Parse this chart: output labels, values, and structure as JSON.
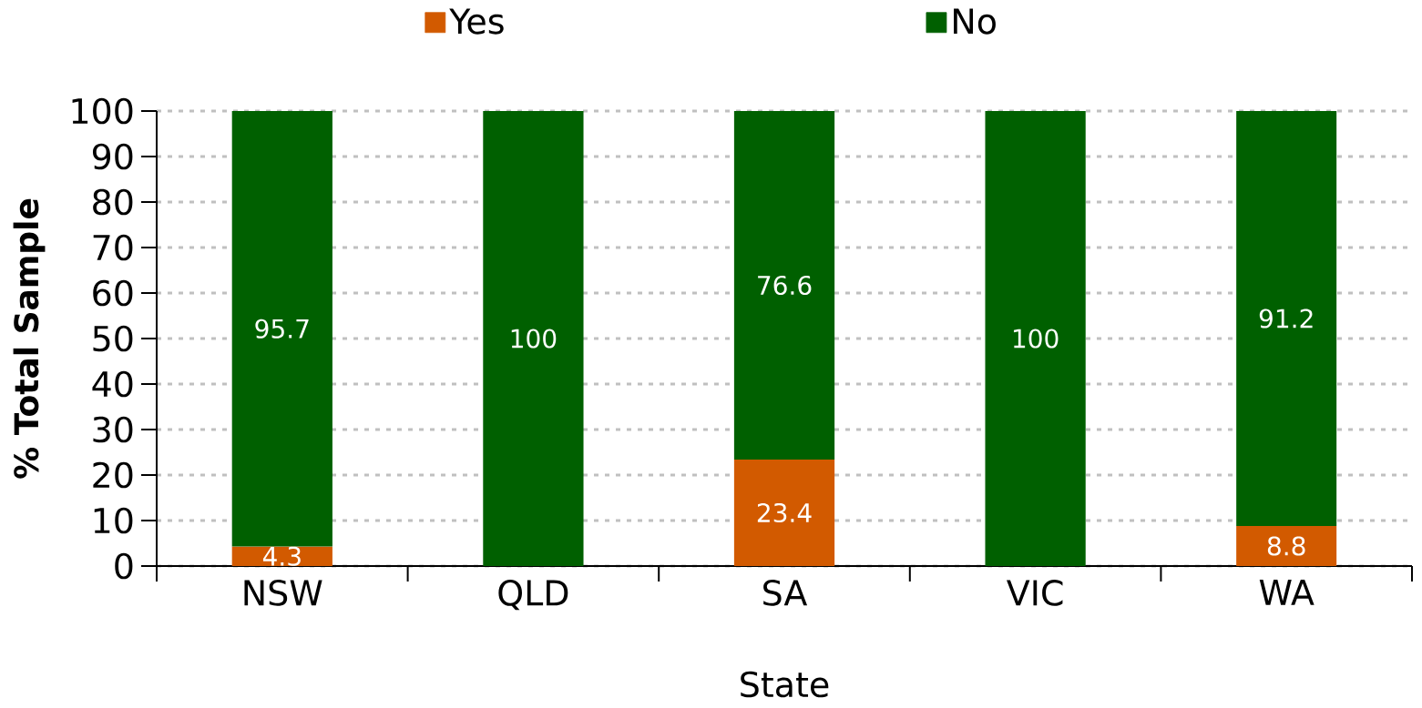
{
  "chart_data": {
    "type": "bar",
    "stacked": true,
    "xlabel": "State",
    "ylabel": "% Total Sample",
    "categories": [
      "NSW",
      "QLD",
      "SA",
      "VIC",
      "WA"
    ],
    "series": [
      {
        "name": "Yes",
        "color": "#d25a00",
        "values": [
          4.3,
          0,
          23.4,
          0,
          8.8
        ],
        "value_labels": [
          "4.3",
          null,
          "23.4",
          null,
          "8.8"
        ]
      },
      {
        "name": "No",
        "color": "#006000",
        "values": [
          95.7,
          100,
          76.6,
          100,
          91.2
        ],
        "value_labels": [
          "95.7",
          "100",
          "76.6",
          "100",
          "91.2"
        ]
      }
    ],
    "ylim": [
      0,
      100
    ],
    "yticks": [
      0,
      10,
      20,
      30,
      40,
      50,
      60,
      70,
      80,
      90,
      100
    ],
    "grid": "y",
    "legend": "top"
  }
}
